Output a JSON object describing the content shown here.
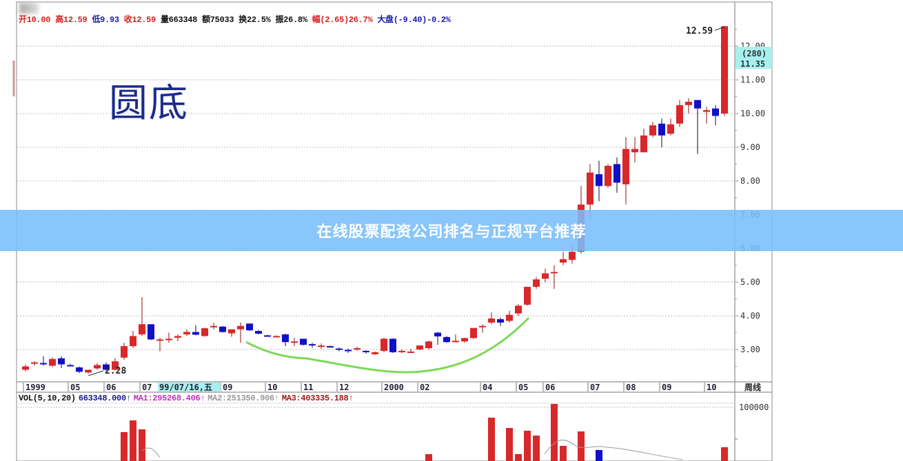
{
  "header": {
    "open": {
      "text": "开10.00",
      "color": "#d42020"
    },
    "high": {
      "text": "高12.59",
      "color": "#d42020"
    },
    "low": {
      "text": "低9.93",
      "color": "#1a1aa8"
    },
    "close": {
      "text": "收12.59",
      "color": "#d42020"
    },
    "volume": {
      "text": "量663348",
      "color": "#111111"
    },
    "amount": {
      "text": "额75033",
      "color": "#111111"
    },
    "turnover": {
      "text": "换22.5%",
      "color": "#111111"
    },
    "amplitude": {
      "text": "振26.8%",
      "color": "#111111"
    },
    "change": {
      "text": "幅(2.65)26.7%",
      "color": "#d42020"
    },
    "market": {
      "text": "大盘(-9.40)-0.2%",
      "color": "#1a1aa8"
    }
  },
  "annotation_title": "圆底",
  "banner_text": "在线股票配资公司排名与正规平台推荐",
  "period_label": "周线",
  "cursor_date": "99/07/16,五",
  "price_marker": {
    "count": "(280)",
    "price": "11.35"
  },
  "low_label": "2.28",
  "high_label": "12.59",
  "volume_header": {
    "name": "VOL(5,10,20)",
    "value": "663348.000↑",
    "ma1": "MA1:295268.406↑",
    "ma2": "MA2:251350.906↑",
    "ma3": "MA3:403335.188↑"
  },
  "colors": {
    "up": "#d8282a",
    "down": "#1010c8",
    "curve": "#7ed957",
    "banner": "#78befa",
    "marker_bg": "#a8f0f0"
  },
  "chart_data": {
    "type": "candlestick",
    "title": "",
    "ylim": [
      2.0,
      12.9
    ],
    "y_ticks": [
      "12.00",
      "11.00",
      "10.00",
      "9.00",
      "8.00",
      "7.00",
      "6.00",
      "5.00",
      "4.00",
      "3.00"
    ],
    "x_tick_labels": [
      "1999",
      "05",
      "06",
      "07",
      "09",
      "10",
      "11",
      "12",
      "2000",
      "02",
      "04",
      "05",
      "06",
      "07",
      "08",
      "09",
      "10"
    ],
    "grid": true,
    "ohlc": [
      [
        2.4,
        2.55,
        2.35,
        2.5
      ],
      [
        2.58,
        2.66,
        2.52,
        2.62
      ],
      [
        2.6,
        2.8,
        2.52,
        2.56
      ],
      [
        2.52,
        2.76,
        2.48,
        2.72
      ],
      [
        2.74,
        2.8,
        2.45,
        2.56
      ],
      [
        2.54,
        2.58,
        2.5,
        2.5
      ],
      [
        2.47,
        2.5,
        2.3,
        2.34
      ],
      [
        2.32,
        2.4,
        2.28,
        2.4
      ],
      [
        2.44,
        2.6,
        2.4,
        2.54
      ],
      [
        2.56,
        2.62,
        2.36,
        2.4
      ],
      [
        2.4,
        2.75,
        2.38,
        2.65
      ],
      [
        2.76,
        3.2,
        2.7,
        3.1
      ],
      [
        3.1,
        3.55,
        3.05,
        3.4
      ],
      [
        3.45,
        4.55,
        3.4,
        3.75
      ],
      [
        3.75,
        3.75,
        3.28,
        3.3
      ],
      [
        3.3,
        3.35,
        2.95,
        3.3
      ],
      [
        3.28,
        3.5,
        3.2,
        3.32
      ],
      [
        3.35,
        3.45,
        3.25,
        3.4
      ],
      [
        3.45,
        3.6,
        3.4,
        3.52
      ],
      [
        3.52,
        3.72,
        3.42,
        3.44
      ],
      [
        3.4,
        3.65,
        3.38,
        3.63
      ],
      [
        3.68,
        3.8,
        3.6,
        3.7
      ],
      [
        3.68,
        3.7,
        3.5,
        3.52
      ],
      [
        3.48,
        3.6,
        3.38,
        3.6
      ],
      [
        3.6,
        3.8,
        3.2,
        3.7
      ],
      [
        3.77,
        3.77,
        3.55,
        3.57
      ],
      [
        3.55,
        3.58,
        3.45,
        3.47
      ],
      [
        3.42,
        3.44,
        3.38,
        3.39
      ],
      [
        3.38,
        3.42,
        3.36,
        3.4
      ],
      [
        3.45,
        3.47,
        3.1,
        3.22
      ],
      [
        3.24,
        3.35,
        3.1,
        3.24
      ],
      [
        3.32,
        3.32,
        3.12,
        3.14
      ],
      [
        3.16,
        3.2,
        3.05,
        3.14
      ],
      [
        3.12,
        3.18,
        3.02,
        3.12
      ],
      [
        3.1,
        3.12,
        3.06,
        3.06
      ],
      [
        3.03,
        3.06,
        2.95,
        3.02
      ],
      [
        2.99,
        3.03,
        2.9,
        2.98
      ],
      [
        3.0,
        3.08,
        2.96,
        3.04
      ],
      [
        2.96,
        2.98,
        2.88,
        2.94
      ],
      [
        2.86,
        2.94,
        2.84,
        2.92
      ],
      [
        2.96,
        3.35,
        2.92,
        3.32
      ],
      [
        3.32,
        3.33,
        2.9,
        2.92
      ],
      [
        2.94,
        3.0,
        2.9,
        2.96
      ],
      [
        2.94,
        3.02,
        2.9,
        2.94
      ],
      [
        3.0,
        3.12,
        2.98,
        3.12
      ],
      [
        3.04,
        3.26,
        3.0,
        3.24
      ],
      [
        3.5,
        3.52,
        3.14,
        3.39
      ],
      [
        3.37,
        3.4,
        3.2,
        3.22
      ],
      [
        3.24,
        3.45,
        3.22,
        3.26
      ],
      [
        3.24,
        3.35,
        3.2,
        3.34
      ],
      [
        3.34,
        3.6,
        3.32,
        3.64
      ],
      [
        3.66,
        3.75,
        3.5,
        3.7
      ],
      [
        3.8,
        4.1,
        3.75,
        3.92
      ],
      [
        3.9,
        3.95,
        3.7,
        3.8
      ],
      [
        3.85,
        4.15,
        3.8,
        4.03
      ],
      [
        4.07,
        4.35,
        4.0,
        4.3
      ],
      [
        4.33,
        4.85,
        4.3,
        4.86
      ],
      [
        4.86,
        5.15,
        4.8,
        5.08
      ],
      [
        5.1,
        5.4,
        5.0,
        5.26
      ],
      [
        5.26,
        5.5,
        4.8,
        5.3
      ],
      [
        5.58,
        5.9,
        5.5,
        5.68
      ],
      [
        5.66,
        6.1,
        5.55,
        5.9
      ],
      [
        5.9,
        7.85,
        5.85,
        7.3
      ],
      [
        7.3,
        8.5,
        6.9,
        8.25
      ],
      [
        8.2,
        8.6,
        7.4,
        7.85
      ],
      [
        7.85,
        8.5,
        7.8,
        8.45
      ],
      [
        8.5,
        8.7,
        7.65,
        7.95
      ],
      [
        7.9,
        9.3,
        7.3,
        8.95
      ],
      [
        8.85,
        9.3,
        8.55,
        8.95
      ],
      [
        8.85,
        9.55,
        8.85,
        9.35
      ],
      [
        9.35,
        9.75,
        9.3,
        9.65
      ],
      [
        9.7,
        9.85,
        9.0,
        9.35
      ],
      [
        9.4,
        9.85,
        9.35,
        9.68
      ],
      [
        9.7,
        10.4,
        9.6,
        10.25
      ],
      [
        10.25,
        10.45,
        10.0,
        10.35
      ],
      [
        10.4,
        10.4,
        8.8,
        10.15
      ],
      [
        10.05,
        10.2,
        9.7,
        10.1
      ],
      [
        10.15,
        10.25,
        9.65,
        9.93
      ],
      [
        10.0,
        12.59,
        9.93,
        12.59
      ]
    ],
    "volume_ticks": [
      "100000"
    ],
    "volume_visible": [
      {
        "bar": 12,
        "v": 66700
      },
      {
        "bar": 13,
        "v": 82400
      },
      {
        "bar": 14,
        "v": 70400
      },
      {
        "bar": 46,
        "v": 37000
      },
      {
        "bar": 53,
        "v": 86100
      },
      {
        "bar": 55,
        "v": 72200
      },
      {
        "bar": 56,
        "v": 37000
      },
      {
        "bar": 57,
        "v": 68500
      },
      {
        "bar": 58,
        "v": 62000
      },
      {
        "bar": 60,
        "v": 104600
      },
      {
        "bar": 61,
        "v": 48100
      },
      {
        "bar": 63,
        "v": 67600
      },
      {
        "bar": 65,
        "v": 42600
      },
      {
        "bar": 79,
        "v": 46300
      }
    ]
  }
}
